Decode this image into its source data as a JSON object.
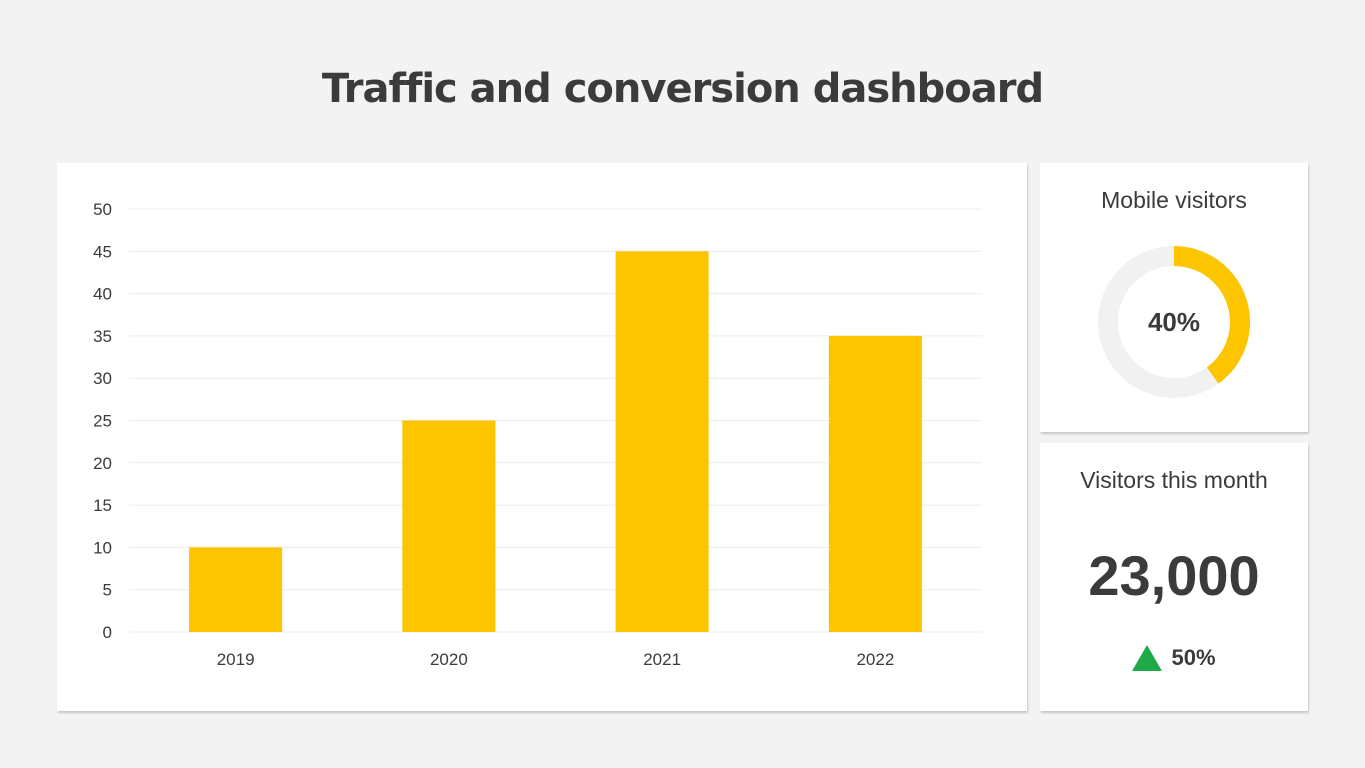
{
  "page": {
    "title": "Traffic and conversion dashboard"
  },
  "chart_data": {
    "type": "bar",
    "title": "",
    "xlabel": "",
    "ylabel": "",
    "categories": [
      "2019",
      "2020",
      "2021",
      "2022"
    ],
    "values": [
      10,
      25,
      45,
      35
    ],
    "ylim": [
      0,
      50
    ],
    "yticks": [
      "0",
      "5",
      "10",
      "15",
      "20",
      "25",
      "30",
      "35",
      "40",
      "45",
      "50"
    ],
    "grid": true,
    "bar_color": "#fdc400",
    "grid_color": "#ececec"
  },
  "mobile_visitors": {
    "title": "Mobile visitors",
    "value": 40,
    "label": "40%",
    "accent_color": "#fdc400",
    "track_color": "#f1f1f1"
  },
  "visitors_month": {
    "title": "Visitors this month",
    "value": "23,000",
    "change": "50%",
    "change_icon": "triangle-up-icon",
    "change_color": "#1faa4a"
  }
}
